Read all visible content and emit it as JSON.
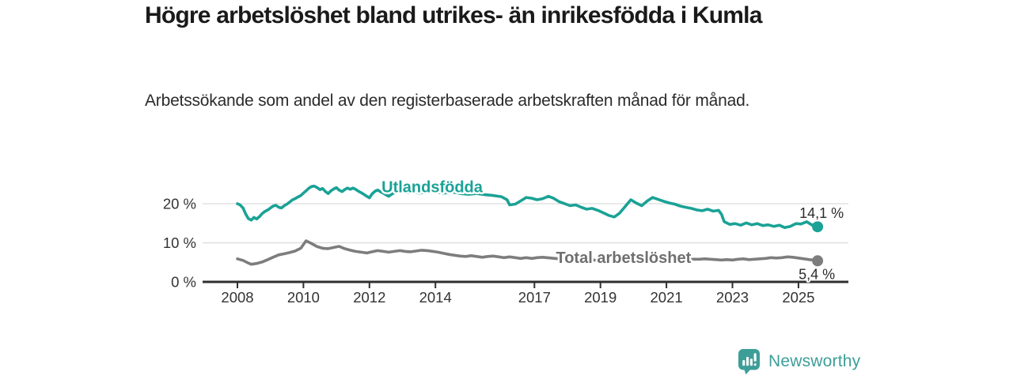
{
  "colors": {
    "accent_teal": "#1aa296",
    "line_gray": "#7d7d7d",
    "label_gray": "#6f6f6f",
    "brand_teal": "#3d9e98",
    "title_text": "#1a1a1a",
    "body_text": "#2b2b2b",
    "axis_text": "#333333",
    "grid_line": "#dcdcdc",
    "axis_line": "#2f2f2f"
  },
  "footer": {
    "brand": "Newsworthy"
  },
  "chart_data": {
    "type": "line",
    "title": "Högre arbetslöshet bland utrikes- än inrikesfödda i Kumla",
    "subtitle": "Arbetssökande som andel av den registerbaserade arbetskraften månad för månad.",
    "unit": "%",
    "legend": "inline-labels",
    "x_axis": {
      "range": [
        2006.9,
        2026.5
      ],
      "ticks": [
        {
          "value": 2008,
          "label": "2008"
        },
        {
          "value": 2010,
          "label": "2010"
        },
        {
          "value": 2012,
          "label": "2012"
        },
        {
          "value": 2014,
          "label": "2014"
        },
        {
          "value": 2017,
          "label": "2017"
        },
        {
          "value": 2019,
          "label": "2019"
        },
        {
          "value": 2021,
          "label": "2021"
        },
        {
          "value": 2023,
          "label": "2023"
        },
        {
          "value": 2025,
          "label": "2025"
        }
      ]
    },
    "y_axis": {
      "range": [
        0,
        26
      ],
      "grid": true,
      "ticks": [
        {
          "value": 20,
          "label": "20 %"
        },
        {
          "value": 10,
          "label": "10 %"
        },
        {
          "value": 0,
          "label": "0 %"
        }
      ]
    },
    "series": [
      {
        "id": "utlandsfodda",
        "name": "Utlandsfödda",
        "color": "#1aa296",
        "label_color": "#1aa296",
        "label_pos": [
          2013.9,
          22.9
        ],
        "end_label": "14,1 %",
        "end_value": 14.1,
        "end_label_offset": [
          5,
          -11
        ],
        "points": [
          [
            2008.0,
            20.0
          ],
          [
            2008.08,
            19.7
          ],
          [
            2008.17,
            18.9
          ],
          [
            2008.25,
            17.4
          ],
          [
            2008.33,
            16.2
          ],
          [
            2008.42,
            15.8
          ],
          [
            2008.5,
            16.5
          ],
          [
            2008.58,
            16.1
          ],
          [
            2008.67,
            16.7
          ],
          [
            2008.75,
            17.5
          ],
          [
            2008.83,
            18.0
          ],
          [
            2008.92,
            18.4
          ],
          [
            2009.0,
            18.9
          ],
          [
            2009.08,
            19.4
          ],
          [
            2009.17,
            19.6
          ],
          [
            2009.25,
            19.1
          ],
          [
            2009.33,
            18.9
          ],
          [
            2009.42,
            19.5
          ],
          [
            2009.5,
            19.9
          ],
          [
            2009.58,
            20.4
          ],
          [
            2009.67,
            21.0
          ],
          [
            2009.75,
            21.3
          ],
          [
            2009.83,
            21.7
          ],
          [
            2009.92,
            22.1
          ],
          [
            2010.0,
            22.7
          ],
          [
            2010.08,
            23.3
          ],
          [
            2010.17,
            24.0
          ],
          [
            2010.25,
            24.4
          ],
          [
            2010.33,
            24.5
          ],
          [
            2010.42,
            24.1
          ],
          [
            2010.5,
            23.6
          ],
          [
            2010.58,
            23.9
          ],
          [
            2010.67,
            23.1
          ],
          [
            2010.75,
            22.6
          ],
          [
            2010.83,
            23.3
          ],
          [
            2010.92,
            23.8
          ],
          [
            2011.0,
            24.1
          ],
          [
            2011.08,
            23.5
          ],
          [
            2011.17,
            23.1
          ],
          [
            2011.25,
            23.6
          ],
          [
            2011.33,
            24.0
          ],
          [
            2011.42,
            23.7
          ],
          [
            2011.5,
            24.0
          ],
          [
            2011.58,
            23.7
          ],
          [
            2011.67,
            23.2
          ],
          [
            2011.75,
            22.8
          ],
          [
            2011.83,
            22.4
          ],
          [
            2011.92,
            21.9
          ],
          [
            2012.0,
            21.5
          ],
          [
            2012.08,
            22.5
          ],
          [
            2012.17,
            23.2
          ],
          [
            2012.25,
            23.5
          ],
          [
            2012.33,
            23.1
          ],
          [
            2012.42,
            22.7
          ],
          [
            2012.5,
            22.3
          ],
          [
            2012.58,
            21.9
          ],
          [
            2012.67,
            22.4
          ],
          [
            2012.75,
            22.8
          ],
          [
            2012.83,
            23.1
          ],
          [
            2013.0,
            23.4
          ],
          [
            2013.17,
            22.8
          ],
          [
            2013.33,
            23.1
          ],
          [
            2013.5,
            22.7
          ],
          [
            2013.67,
            22.9
          ],
          [
            2013.83,
            23.2
          ],
          [
            2014.0,
            23.0
          ],
          [
            2014.25,
            22.7
          ],
          [
            2014.5,
            23.0
          ],
          [
            2014.75,
            22.6
          ],
          [
            2015.0,
            22.4
          ],
          [
            2015.25,
            22.6
          ],
          [
            2015.5,
            22.3
          ],
          [
            2015.75,
            22.1
          ],
          [
            2016.0,
            21.8
          ],
          [
            2016.17,
            21.0
          ],
          [
            2016.25,
            19.7
          ],
          [
            2016.42,
            19.9
          ],
          [
            2016.58,
            20.7
          ],
          [
            2016.75,
            21.6
          ],
          [
            2016.92,
            21.4
          ],
          [
            2017.08,
            21.0
          ],
          [
            2017.25,
            21.3
          ],
          [
            2017.42,
            21.9
          ],
          [
            2017.58,
            21.4
          ],
          [
            2017.75,
            20.5
          ],
          [
            2017.92,
            20.0
          ],
          [
            2018.08,
            19.5
          ],
          [
            2018.25,
            19.7
          ],
          [
            2018.42,
            19.1
          ],
          [
            2018.58,
            18.6
          ],
          [
            2018.75,
            18.8
          ],
          [
            2018.92,
            18.3
          ],
          [
            2019.08,
            17.7
          ],
          [
            2019.25,
            17.0
          ],
          [
            2019.42,
            16.6
          ],
          [
            2019.58,
            17.6
          ],
          [
            2019.75,
            19.3
          ],
          [
            2019.92,
            21.0
          ],
          [
            2020.08,
            20.2
          ],
          [
            2020.25,
            19.5
          ],
          [
            2020.42,
            20.7
          ],
          [
            2020.58,
            21.6
          ],
          [
            2020.75,
            21.1
          ],
          [
            2020.92,
            20.6
          ],
          [
            2021.08,
            20.2
          ],
          [
            2021.25,
            19.9
          ],
          [
            2021.42,
            19.4
          ],
          [
            2021.58,
            19.1
          ],
          [
            2021.75,
            18.8
          ],
          [
            2021.92,
            18.4
          ],
          [
            2022.08,
            18.2
          ],
          [
            2022.25,
            18.6
          ],
          [
            2022.42,
            18.1
          ],
          [
            2022.58,
            18.3
          ],
          [
            2022.67,
            17.3
          ],
          [
            2022.75,
            15.4
          ],
          [
            2022.92,
            14.7
          ],
          [
            2023.08,
            14.9
          ],
          [
            2023.25,
            14.5
          ],
          [
            2023.42,
            15.1
          ],
          [
            2023.58,
            14.6
          ],
          [
            2023.75,
            14.9
          ],
          [
            2023.92,
            14.4
          ],
          [
            2024.08,
            14.6
          ],
          [
            2024.25,
            14.2
          ],
          [
            2024.42,
            14.5
          ],
          [
            2024.58,
            13.9
          ],
          [
            2024.75,
            14.2
          ],
          [
            2024.92,
            14.9
          ],
          [
            2025.08,
            14.8
          ],
          [
            2025.25,
            15.4
          ],
          [
            2025.42,
            14.5
          ],
          [
            2025.5,
            14.8
          ],
          [
            2025.58,
            14.1
          ]
        ]
      },
      {
        "id": "total",
        "name": "Total arbetslöshet",
        "color": "#7d7d7d",
        "label_color": "#6f6f6f",
        "label_pos": [
          2019.7,
          4.85
        ],
        "end_label": "5,4 %",
        "end_value": 5.4,
        "end_label_offset": [
          -1,
          23
        ],
        "points": [
          [
            2008.0,
            5.9
          ],
          [
            2008.17,
            5.5
          ],
          [
            2008.33,
            4.8
          ],
          [
            2008.42,
            4.5
          ],
          [
            2008.58,
            4.7
          ],
          [
            2008.75,
            5.1
          ],
          [
            2008.92,
            5.7
          ],
          [
            2009.08,
            6.3
          ],
          [
            2009.25,
            6.9
          ],
          [
            2009.42,
            7.2
          ],
          [
            2009.58,
            7.5
          ],
          [
            2009.75,
            7.9
          ],
          [
            2009.92,
            8.6
          ],
          [
            2010.08,
            10.5
          ],
          [
            2010.25,
            9.8
          ],
          [
            2010.42,
            9.0
          ],
          [
            2010.58,
            8.6
          ],
          [
            2010.75,
            8.5
          ],
          [
            2010.92,
            8.8
          ],
          [
            2011.08,
            9.1
          ],
          [
            2011.25,
            8.5
          ],
          [
            2011.42,
            8.1
          ],
          [
            2011.58,
            7.8
          ],
          [
            2011.75,
            7.6
          ],
          [
            2011.92,
            7.4
          ],
          [
            2012.08,
            7.7
          ],
          [
            2012.25,
            8.0
          ],
          [
            2012.42,
            7.8
          ],
          [
            2012.58,
            7.6
          ],
          [
            2012.75,
            7.8
          ],
          [
            2012.92,
            8.0
          ],
          [
            2013.08,
            7.8
          ],
          [
            2013.25,
            7.7
          ],
          [
            2013.42,
            7.9
          ],
          [
            2013.58,
            8.1
          ],
          [
            2013.75,
            8.0
          ],
          [
            2013.92,
            7.8
          ],
          [
            2014.08,
            7.6
          ],
          [
            2014.25,
            7.3
          ],
          [
            2014.42,
            7.0
          ],
          [
            2014.58,
            6.8
          ],
          [
            2014.75,
            6.6
          ],
          [
            2014.92,
            6.5
          ],
          [
            2015.08,
            6.7
          ],
          [
            2015.25,
            6.5
          ],
          [
            2015.42,
            6.3
          ],
          [
            2015.58,
            6.5
          ],
          [
            2015.75,
            6.6
          ],
          [
            2015.92,
            6.4
          ],
          [
            2016.08,
            6.2
          ],
          [
            2016.25,
            6.4
          ],
          [
            2016.42,
            6.2
          ],
          [
            2016.58,
            6.0
          ],
          [
            2016.75,
            6.2
          ],
          [
            2016.92,
            6.0
          ],
          [
            2017.08,
            6.2
          ],
          [
            2017.25,
            6.3
          ],
          [
            2017.5,
            6.1
          ],
          [
            2017.75,
            5.9
          ],
          [
            2018.0,
            5.8
          ],
          [
            2018.25,
            5.9
          ],
          [
            2018.5,
            5.7
          ],
          [
            2018.75,
            5.6
          ],
          [
            2019.0,
            5.5
          ],
          [
            2019.25,
            5.6
          ],
          [
            2019.5,
            5.8
          ],
          [
            2019.75,
            5.9
          ],
          [
            2020.0,
            6.1
          ],
          [
            2020.25,
            6.3
          ],
          [
            2020.5,
            6.5
          ],
          [
            2020.75,
            6.4
          ],
          [
            2021.0,
            6.2
          ],
          [
            2021.25,
            6.1
          ],
          [
            2021.5,
            5.9
          ],
          [
            2021.75,
            5.8
          ],
          [
            2022.0,
            5.8
          ],
          [
            2022.17,
            5.9
          ],
          [
            2022.33,
            5.8
          ],
          [
            2022.5,
            5.7
          ],
          [
            2022.67,
            5.6
          ],
          [
            2022.83,
            5.7
          ],
          [
            2023.0,
            5.6
          ],
          [
            2023.17,
            5.8
          ],
          [
            2023.33,
            5.9
          ],
          [
            2023.5,
            5.7
          ],
          [
            2023.67,
            5.8
          ],
          [
            2023.83,
            5.9
          ],
          [
            2024.0,
            6.0
          ],
          [
            2024.17,
            6.2
          ],
          [
            2024.33,
            6.1
          ],
          [
            2024.5,
            6.2
          ],
          [
            2024.67,
            6.4
          ],
          [
            2024.83,
            6.3
          ],
          [
            2025.0,
            6.1
          ],
          [
            2025.17,
            5.9
          ],
          [
            2025.33,
            5.7
          ],
          [
            2025.45,
            5.6
          ],
          [
            2025.58,
            5.4
          ]
        ]
      }
    ]
  }
}
